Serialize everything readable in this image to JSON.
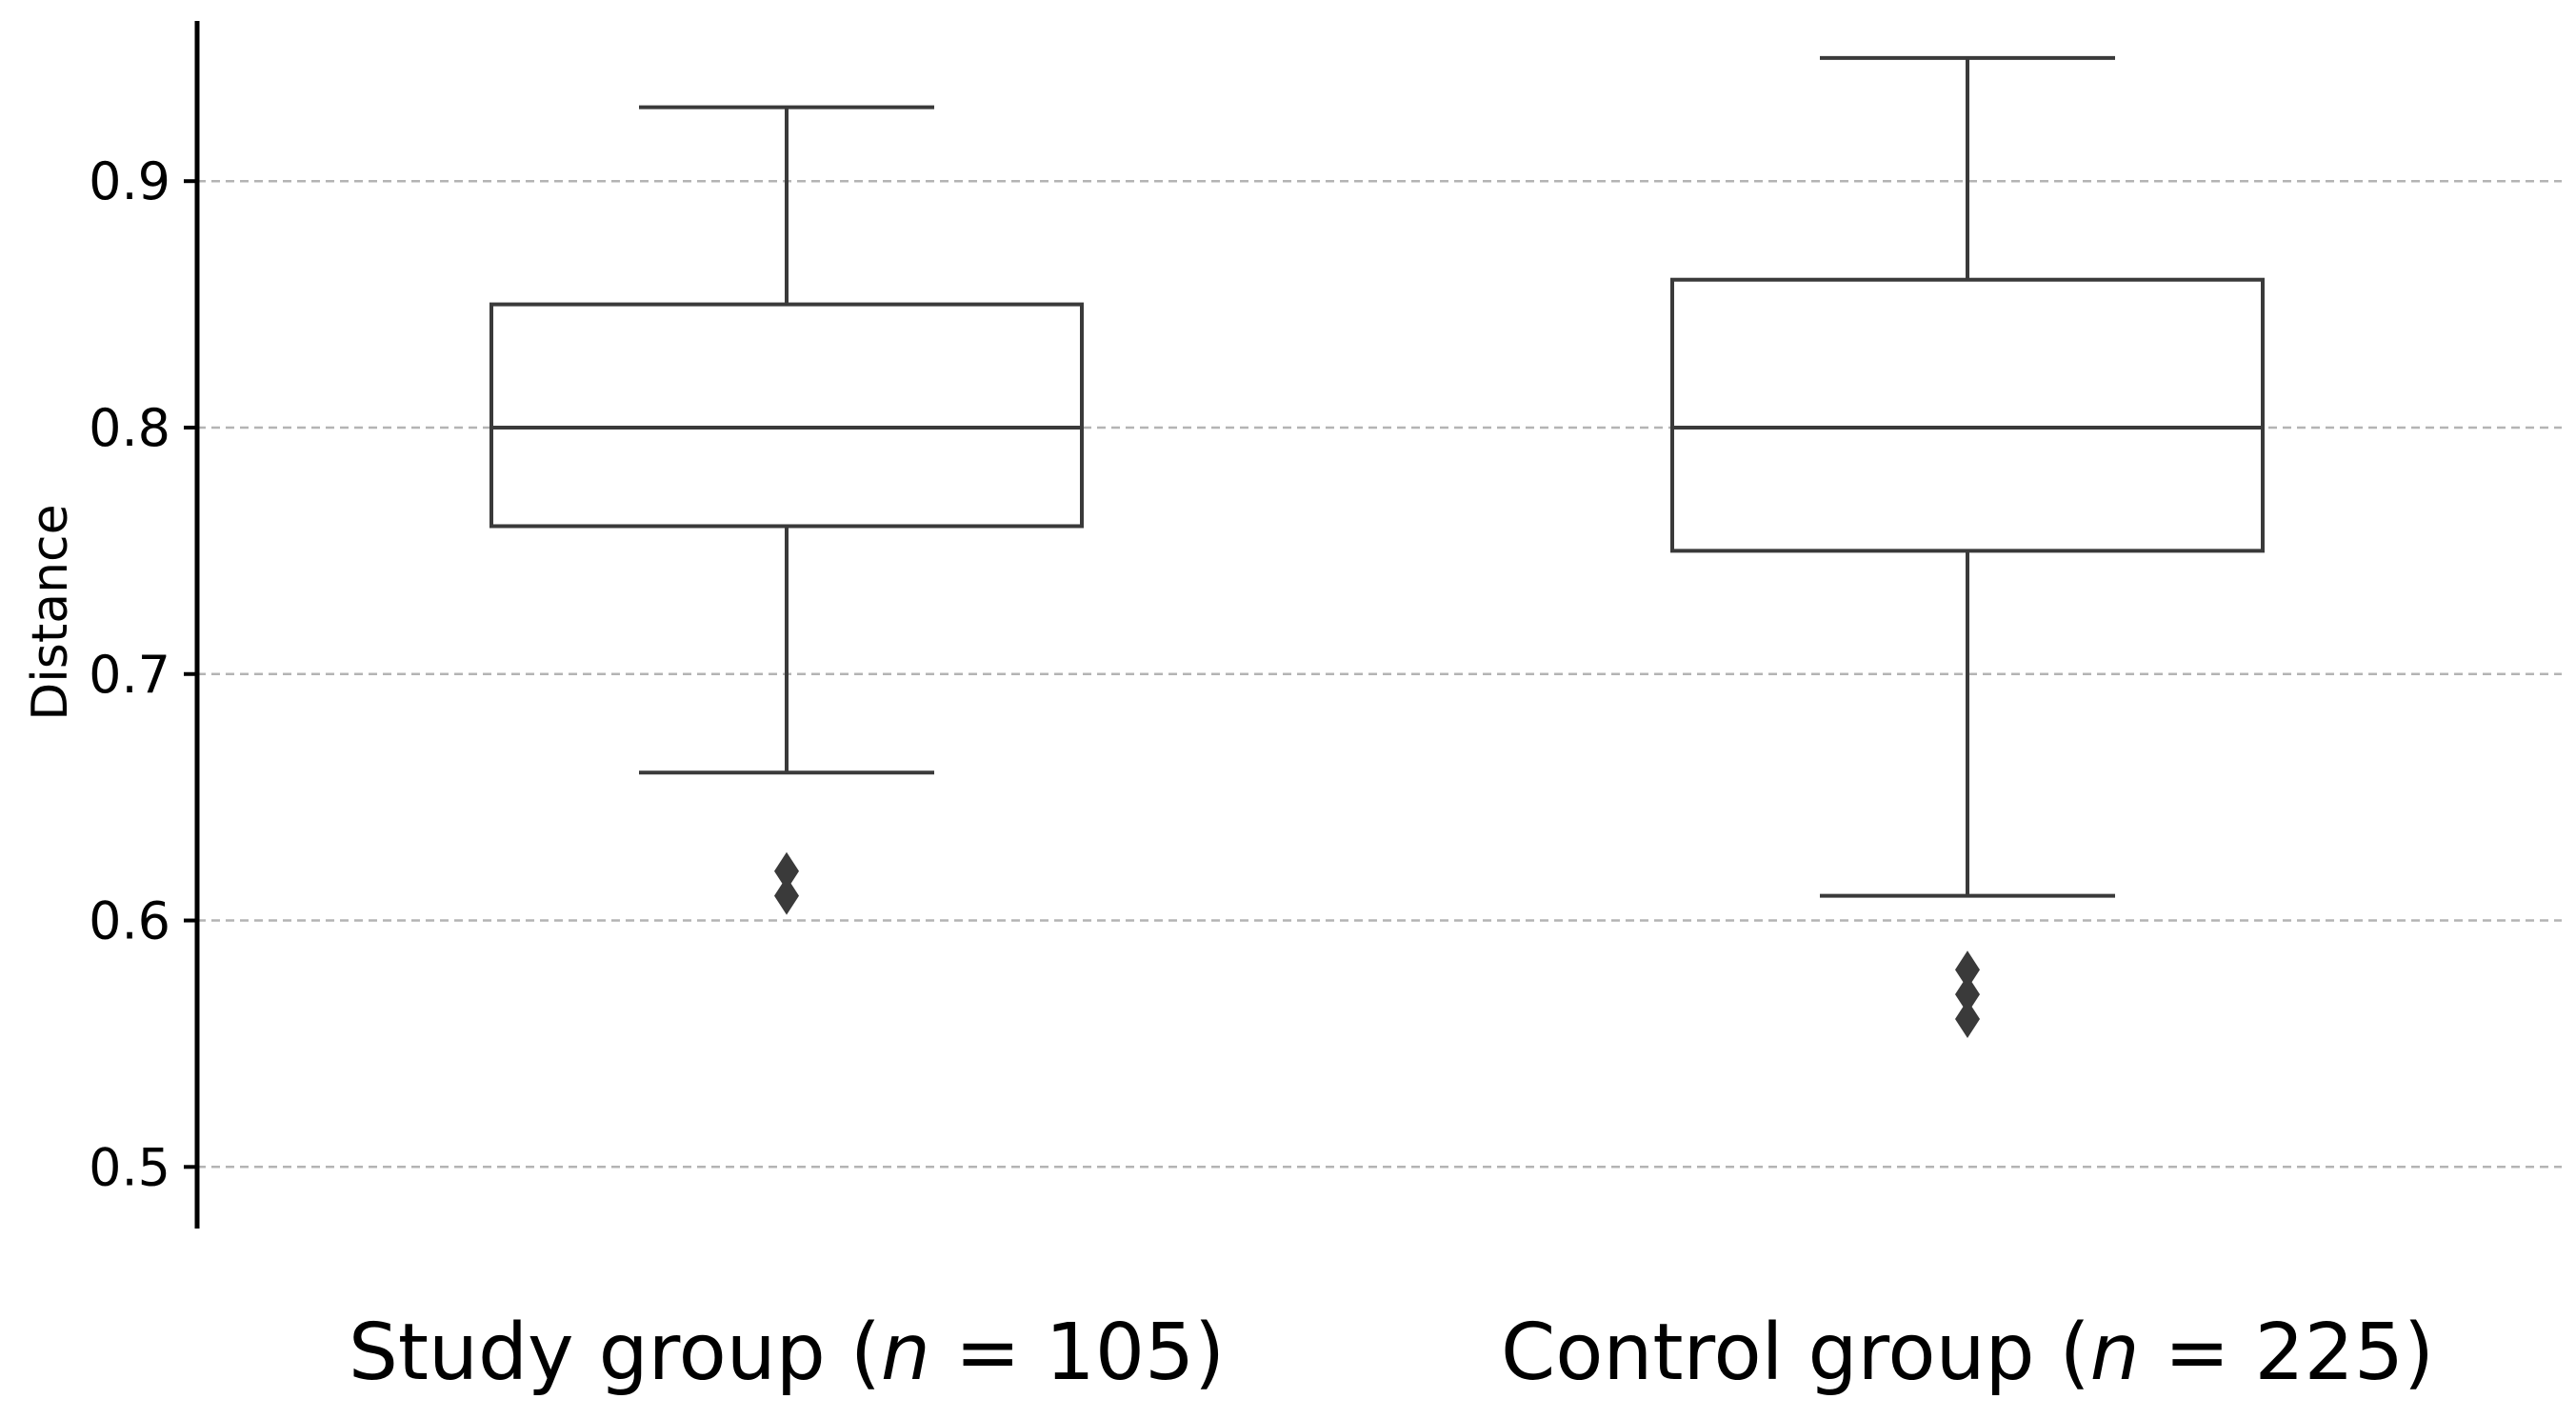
{
  "chart_data": {
    "type": "box",
    "title": "",
    "xlabel": "",
    "ylabel": "Distance",
    "ylim": [
      0.475,
      0.965
    ],
    "yticks": [
      0.5,
      0.6,
      0.7,
      0.8,
      0.9
    ],
    "ytick_labels": [
      "0.5",
      "0.6",
      "0.7",
      "0.8",
      "0.9"
    ],
    "grid": "horizontal dashed",
    "categories": [
      {
        "label_prefix": "Study group (",
        "n_symbol": "n",
        "label_suffix": " = 105)",
        "whisker_low": 0.66,
        "q1": 0.76,
        "median": 0.8,
        "q3": 0.85,
        "whisker_high": 0.93,
        "outliers": [
          0.62,
          0.61
        ]
      },
      {
        "label_prefix": "Control group (",
        "n_symbol": "n",
        "label_suffix": " = 225)",
        "whisker_low": 0.61,
        "q1": 0.75,
        "median": 0.8,
        "q3": 0.86,
        "whisker_high": 0.95,
        "outliers": [
          0.58,
          0.57,
          0.56
        ]
      }
    ],
    "colors": {
      "box_edge": "#3a3a3a",
      "box_fill": "#ffffff",
      "outlier": "#3a3a3a",
      "grid": "#b4b4b4",
      "axis": "#000000"
    }
  }
}
